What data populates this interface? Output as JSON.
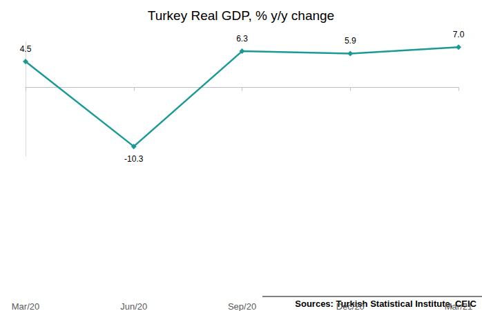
{
  "chart_data": {
    "type": "line",
    "title": "Turkey Real GDP, % y/y change",
    "categories": [
      "Mar/20",
      "Jun/20",
      "Sep/20",
      "Dec/20",
      "Mar/21"
    ],
    "values": [
      4.5,
      -10.3,
      6.3,
      5.9,
      7.0
    ],
    "value_labels": [
      "4.5",
      "-10.3",
      "6.3",
      "5.9",
      "7.0"
    ],
    "color": "#1a9a96",
    "marker": "diamond",
    "ylim": [
      -12,
      8
    ],
    "grid": false,
    "data_labels": true,
    "tick_labels": "x",
    "annotations": [
      "Sources: Turkish Statistical Institute, CEIC"
    ]
  }
}
